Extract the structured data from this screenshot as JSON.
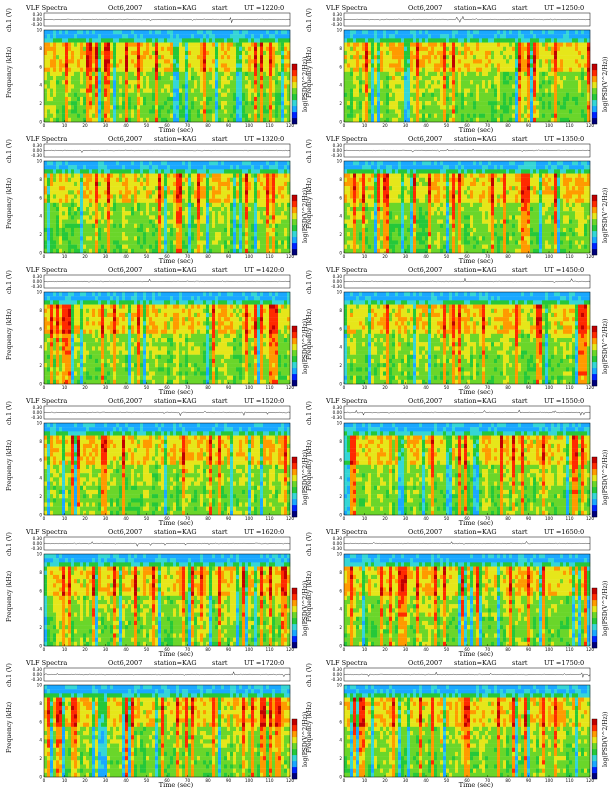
{
  "chart_data": [
    {
      "type": "heatmap",
      "title": "VLF Spectra",
      "date": "Oct6,2007",
      "station": "station=KAG",
      "start_label": "start",
      "ut": "UT =1220:0",
      "xlabel": "Time (sec)",
      "ylabel": "Frequency (kHz)",
      "ch_label": "ch.1 (V)",
      "cb_label": "log(PSD(V^2/Hz))",
      "xlim": [
        0,
        120
      ],
      "ylim": [
        0,
        10
      ],
      "ch_ylim": [
        -0.3,
        0.3
      ],
      "x_ticks": [
        "0",
        "10",
        "20",
        "30",
        "40",
        "50",
        "60",
        "70",
        "80",
        "90",
        "100",
        "110",
        "120"
      ],
      "y_ticks": [
        "0",
        "2",
        "4",
        "6",
        "8",
        "10"
      ],
      "ch_ticks": [
        "0.30",
        "0.00",
        "-0.30"
      ]
    },
    {
      "type": "heatmap",
      "title": "VLF Spectra",
      "date": "Oct6,2007",
      "station": "station=KAG",
      "start_label": "start",
      "ut": "UT =1250:0",
      "xlabel": "Time (sec)",
      "ylabel": "Frequency (kHz)",
      "ch_label": "ch.1 (V)",
      "cb_label": "log(PSD(V^2/Hz))",
      "xlim": [
        0,
        120
      ],
      "ylim": [
        0,
        10
      ],
      "ch_ylim": [
        -0.3,
        0.3
      ],
      "x_ticks": [
        "0",
        "10",
        "20",
        "30",
        "40",
        "50",
        "60",
        "70",
        "80",
        "90",
        "100",
        "110",
        "120"
      ],
      "y_ticks": [
        "0",
        "2",
        "4",
        "6",
        "8",
        "10"
      ],
      "ch_ticks": [
        "0.30",
        "0.00",
        "-0.30"
      ]
    },
    {
      "type": "heatmap",
      "title": "VLF Spectra",
      "date": "Oct6,2007",
      "station": "station=KAG",
      "start_label": "start",
      "ut": "UT =1320:0",
      "xlabel": "Time (sec)",
      "ylabel": "Frequency (kHz)",
      "ch_label": "ch.1 (V)",
      "cb_label": "log(PSD(V^2/Hz))",
      "xlim": [
        0,
        120
      ],
      "ylim": [
        0,
        10
      ],
      "ch_ylim": [
        -0.3,
        0.3
      ],
      "x_ticks": [
        "0",
        "10",
        "20",
        "30",
        "40",
        "50",
        "60",
        "70",
        "80",
        "90",
        "100",
        "110",
        "120"
      ],
      "y_ticks": [
        "0",
        "2",
        "4",
        "6",
        "8",
        "10"
      ],
      "ch_ticks": [
        "0.30",
        "0.00",
        "-0.30"
      ]
    },
    {
      "type": "heatmap",
      "title": "VLF Spectra",
      "date": "Oct6,2007",
      "station": "station=KAG",
      "start_label": "start",
      "ut": "UT =1350:0",
      "xlabel": "Time (sec)",
      "ylabel": "Frequency (kHz)",
      "ch_label": "ch.1 (V)",
      "cb_label": "log(PSD(V^2/Hz))",
      "xlim": [
        0,
        120
      ],
      "ylim": [
        0,
        10
      ],
      "ch_ylim": [
        -0.3,
        0.3
      ],
      "x_ticks": [
        "0",
        "10",
        "20",
        "30",
        "40",
        "50",
        "60",
        "70",
        "80",
        "90",
        "100",
        "110",
        "120"
      ],
      "y_ticks": [
        "0",
        "2",
        "4",
        "6",
        "8",
        "10"
      ],
      "ch_ticks": [
        "0.30",
        "0.00",
        "-0.30"
      ]
    },
    {
      "type": "heatmap",
      "title": "VLF Spectra",
      "date": "Oct6,2007",
      "station": "station=KAG",
      "start_label": "start",
      "ut": "UT =1420:0",
      "xlabel": "Time (sec)",
      "ylabel": "Frequency (kHz)",
      "ch_label": "ch.1 (V)",
      "cb_label": "log(PSD(V^2/Hz))",
      "xlim": [
        0,
        120
      ],
      "ylim": [
        0,
        10
      ],
      "ch_ylim": [
        -0.3,
        0.3
      ],
      "x_ticks": [
        "0",
        "10",
        "20",
        "30",
        "40",
        "50",
        "60",
        "70",
        "80",
        "90",
        "100",
        "110",
        "120"
      ],
      "y_ticks": [
        "0",
        "2",
        "4",
        "6",
        "8",
        "10"
      ],
      "ch_ticks": [
        "0.30",
        "0.00",
        "-0.30"
      ]
    },
    {
      "type": "heatmap",
      "title": "VLF Spectra",
      "date": "Oct6,2007",
      "station": "station=KAG",
      "start_label": "start",
      "ut": "UT =1450:0",
      "xlabel": "Time (sec)",
      "ylabel": "Frequency (kHz)",
      "ch_label": "ch.1 (V)",
      "cb_label": "log(PSD(V^2/Hz))",
      "xlim": [
        0,
        120
      ],
      "ylim": [
        0,
        10
      ],
      "ch_ylim": [
        -0.3,
        0.3
      ],
      "x_ticks": [
        "0",
        "10",
        "20",
        "30",
        "40",
        "50",
        "60",
        "70",
        "80",
        "90",
        "100",
        "110",
        "120"
      ],
      "y_ticks": [
        "0",
        "2",
        "4",
        "6",
        "8",
        "10"
      ],
      "ch_ticks": [
        "0.30",
        "0.00",
        "-0.30"
      ]
    },
    {
      "type": "heatmap",
      "title": "VLF Spectra",
      "date": "Oct6,2007",
      "station": "station=KAG",
      "start_label": "start",
      "ut": "UT =1520:0",
      "xlabel": "Time (sec)",
      "ylabel": "Frequency (kHz)",
      "ch_label": "ch.1 (V)",
      "cb_label": "log(PSD(V^2/Hz))",
      "xlim": [
        0,
        120
      ],
      "ylim": [
        0,
        10
      ],
      "ch_ylim": [
        -0.3,
        0.3
      ],
      "x_ticks": [
        "0",
        "10",
        "20",
        "30",
        "40",
        "50",
        "60",
        "70",
        "80",
        "90",
        "100",
        "110",
        "120"
      ],
      "y_ticks": [
        "0",
        "2",
        "4",
        "6",
        "8",
        "10"
      ],
      "ch_ticks": [
        "0.30",
        "0.00",
        "-0.30"
      ]
    },
    {
      "type": "heatmap",
      "title": "VLF Spectra",
      "date": "Oct6,2007",
      "station": "station=KAG",
      "start_label": "start",
      "ut": "UT =1550:0",
      "xlabel": "Time (sec)",
      "ylabel": "Frequency (kHz)",
      "ch_label": "ch.1 (V)",
      "cb_label": "log(PSD(V^2/Hz))",
      "xlim": [
        0,
        120
      ],
      "ylim": [
        0,
        10
      ],
      "ch_ylim": [
        -0.3,
        0.3
      ],
      "x_ticks": [
        "0",
        "10",
        "20",
        "30",
        "40",
        "50",
        "60",
        "70",
        "80",
        "90",
        "100",
        "110",
        "120"
      ],
      "y_ticks": [
        "0",
        "2",
        "4",
        "6",
        "8",
        "10"
      ],
      "ch_ticks": [
        "0.30",
        "0.00",
        "-0.30"
      ]
    },
    {
      "type": "heatmap",
      "title": "VLF Spectra",
      "date": "Oct6,2007",
      "station": "station=KAG",
      "start_label": "start",
      "ut": "UT =1620:0",
      "xlabel": "Time (sec)",
      "ylabel": "Frequency (kHz)",
      "ch_label": "ch.1 (V)",
      "cb_label": "log(PSD(V^2/Hz))",
      "xlim": [
        0,
        120
      ],
      "ylim": [
        0,
        10
      ],
      "ch_ylim": [
        -0.3,
        0.3
      ],
      "x_ticks": [
        "0",
        "10",
        "20",
        "30",
        "40",
        "50",
        "60",
        "70",
        "80",
        "90",
        "100",
        "110",
        "120"
      ],
      "y_ticks": [
        "0",
        "2",
        "4",
        "6",
        "8",
        "10"
      ],
      "ch_ticks": [
        "0.30",
        "0.00",
        "-0.30"
      ]
    },
    {
      "type": "heatmap",
      "title": "VLF Spectra",
      "date": "Oct6,2007",
      "station": "station=KAG",
      "start_label": "start",
      "ut": "UT =1650:0",
      "xlabel": "Time (sec)",
      "ylabel": "Frequency (kHz)",
      "ch_label": "ch.1 (V)",
      "cb_label": "log(PSD(V^2/Hz))",
      "xlim": [
        0,
        120
      ],
      "ylim": [
        0,
        10
      ],
      "ch_ylim": [
        -0.3,
        0.3
      ],
      "x_ticks": [
        "0",
        "10",
        "20",
        "30",
        "40",
        "50",
        "60",
        "70",
        "80",
        "90",
        "100",
        "110",
        "120"
      ],
      "y_ticks": [
        "0",
        "2",
        "4",
        "6",
        "8",
        "10"
      ],
      "ch_ticks": [
        "0.30",
        "0.00",
        "-0.30"
      ]
    },
    {
      "type": "heatmap",
      "title": "VLF Spectra",
      "date": "Oct6,2007",
      "station": "station=KAG",
      "start_label": "start",
      "ut": "UT =1720:0",
      "xlabel": "Time (sec)",
      "ylabel": "Frequency (kHz)",
      "ch_label": "ch.1 (V)",
      "cb_label": "log(PSD(V^2/Hz))",
      "xlim": [
        0,
        120
      ],
      "ylim": [
        0,
        10
      ],
      "ch_ylim": [
        -0.3,
        0.3
      ],
      "x_ticks": [
        "0",
        "10",
        "20",
        "30",
        "40",
        "50",
        "60",
        "70",
        "80",
        "90",
        "100",
        "110",
        "120"
      ],
      "y_ticks": [
        "0",
        "2",
        "4",
        "6",
        "8",
        "10"
      ],
      "ch_ticks": [
        "0.30",
        "0.00",
        "-0.30"
      ]
    },
    {
      "type": "heatmap",
      "title": "VLF Spectra",
      "date": "Oct6,2007",
      "station": "station=KAG",
      "start_label": "start",
      "ut": "UT =1750:0",
      "xlabel": "Time (sec)",
      "ylabel": "Frequency (kHz)",
      "ch_label": "ch.1 (V)",
      "cb_label": "log(PSD(V^2/Hz))",
      "xlim": [
        0,
        120
      ],
      "ylim": [
        0,
        10
      ],
      "ch_ylim": [
        -0.3,
        0.3
      ],
      "x_ticks": [
        "0",
        "10",
        "20",
        "30",
        "40",
        "50",
        "60",
        "70",
        "80",
        "90",
        "100",
        "110",
        "120"
      ],
      "y_ticks": [
        "0",
        "2",
        "4",
        "6",
        "8",
        "10"
      ],
      "ch_ticks": [
        "0.30",
        "0.00",
        "-0.30"
      ]
    }
  ],
  "colormap": [
    "#00007a",
    "#0022ff",
    "#1aa8ff",
    "#35d6d6",
    "#25c83a",
    "#6ad62a",
    "#e6e61a",
    "#ff9a00",
    "#ff2a00",
    "#c00000"
  ]
}
